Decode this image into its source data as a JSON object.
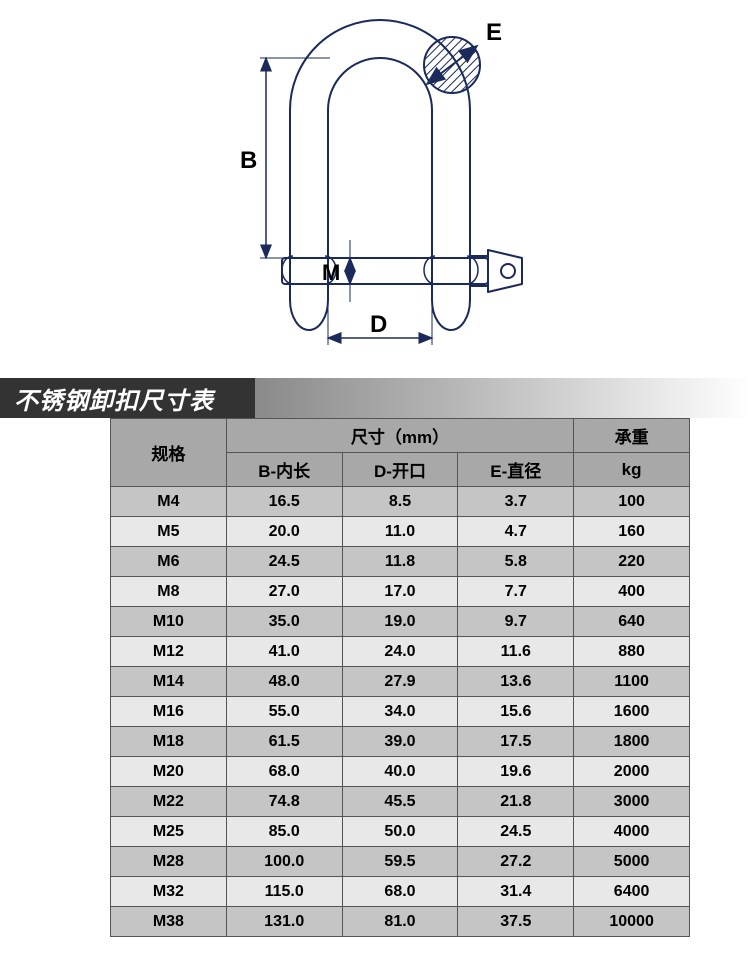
{
  "diagram": {
    "labels": {
      "B": "B",
      "M": "M",
      "D": "D",
      "E": "E"
    },
    "stroke_color": "#1a2a5a",
    "hatch_color": "#1a2a5a",
    "bg": "#ffffff"
  },
  "title": "不锈钢卸扣尺寸表",
  "table": {
    "header": {
      "spec": "规格",
      "dims": "尺寸（mm）",
      "load": "承重",
      "b": "B-内长",
      "d": "D-开口",
      "e": "E-直径",
      "kg": "kg"
    },
    "rows": [
      {
        "spec": "M4",
        "b": "16.5",
        "d": "8.5",
        "e": "3.7",
        "kg": "100"
      },
      {
        "spec": "M5",
        "b": "20.0",
        "d": "11.0",
        "e": "4.7",
        "kg": "160"
      },
      {
        "spec": "M6",
        "b": "24.5",
        "d": "11.8",
        "e": "5.8",
        "kg": "220"
      },
      {
        "spec": "M8",
        "b": "27.0",
        "d": "17.0",
        "e": "7.7",
        "kg": "400"
      },
      {
        "spec": "M10",
        "b": "35.0",
        "d": "19.0",
        "e": "9.7",
        "kg": "640"
      },
      {
        "spec": "M12",
        "b": "41.0",
        "d": "24.0",
        "e": "11.6",
        "kg": "880"
      },
      {
        "spec": "M14",
        "b": "48.0",
        "d": "27.9",
        "e": "13.6",
        "kg": "1100"
      },
      {
        "spec": "M16",
        "b": "55.0",
        "d": "34.0",
        "e": "15.6",
        "kg": "1600"
      },
      {
        "spec": "M18",
        "b": "61.5",
        "d": "39.0",
        "e": "17.5",
        "kg": "1800"
      },
      {
        "spec": "M20",
        "b": "68.0",
        "d": "40.0",
        "e": "19.6",
        "kg": "2000"
      },
      {
        "spec": "M22",
        "b": "74.8",
        "d": "45.5",
        "e": "21.8",
        "kg": "3000"
      },
      {
        "spec": "M25",
        "b": "85.0",
        "d": "50.0",
        "e": "24.5",
        "kg": "4000"
      },
      {
        "spec": "M28",
        "b": "100.0",
        "d": "59.5",
        "e": "27.2",
        "kg": "5000"
      },
      {
        "spec": "M32",
        "b": "115.0",
        "d": "68.0",
        "e": "31.4",
        "kg": "6400"
      },
      {
        "spec": "M38",
        "b": "131.0",
        "d": "81.0",
        "e": "37.5",
        "kg": "10000"
      }
    ],
    "col_widths_pct": [
      20,
      20,
      20,
      20,
      20
    ],
    "odd_row_bg": "#c5c5c5",
    "even_row_bg": "#e8e8e8",
    "header_bg": "#a8a8a8",
    "border_color": "#555555"
  }
}
